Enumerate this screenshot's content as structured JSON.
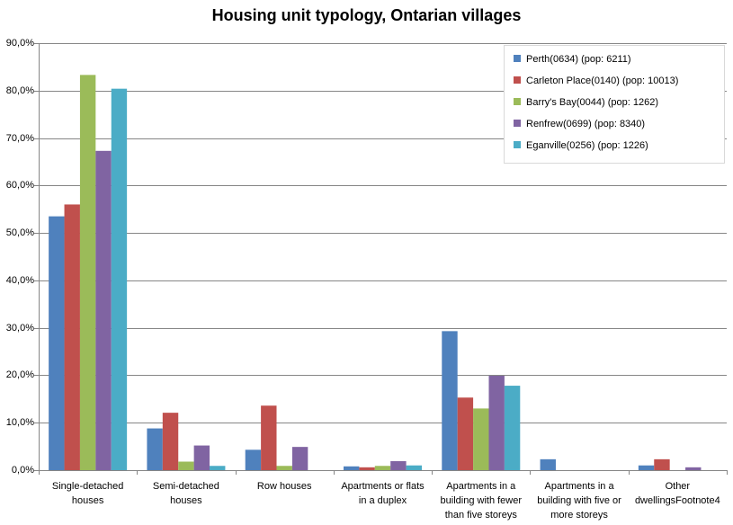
{
  "chart_data": {
    "type": "bar",
    "title": "Housing unit typology, Ontarian villages",
    "xlabel": "",
    "ylabel": "",
    "ylim": [
      0,
      90
    ],
    "yticks": [
      "0,0%",
      "10,0%",
      "20,0%",
      "30,0%",
      "40,0%",
      "50,0%",
      "60,0%",
      "70,0%",
      "80,0%",
      "90,0%"
    ],
    "categories": [
      [
        "Single-detached",
        "houses"
      ],
      [
        "Semi-detached",
        "houses"
      ],
      [
        "Row houses"
      ],
      [
        "Apartments or flats",
        "in a duplex"
      ],
      [
        "Apartments in a",
        "building with fewer",
        "than five storeys"
      ],
      [
        "Apartments in a",
        "building with five or",
        "more storeys"
      ],
      [
        "Other",
        "dwellingsFootnote4"
      ]
    ],
    "series": [
      {
        "name": "Perth(0634)  (pop: 6211)",
        "color": "#4f81bd",
        "values": [
          53.5,
          8.8,
          4.3,
          0.8,
          29.3,
          2.3,
          1.0
        ]
      },
      {
        "name": "Carleton Place(0140)  (pop: 10013)",
        "color": "#c0504d",
        "values": [
          56.0,
          12.1,
          13.6,
          0.6,
          15.3,
          0,
          2.3
        ]
      },
      {
        "name": "Barry's Bay(0044)  (pop: 1262)",
        "color": "#9bbb59",
        "values": [
          83.3,
          1.8,
          0.9,
          0.9,
          13.0,
          0,
          0
        ]
      },
      {
        "name": "Renfrew(0699)  (pop: 8340)",
        "color": "#8064a2",
        "values": [
          67.3,
          5.2,
          4.9,
          1.9,
          19.9,
          0,
          0.6
        ]
      },
      {
        "name": "Eganville(0256)  (pop: 1226)",
        "color": "#4bacc6",
        "values": [
          80.4,
          0.9,
          0,
          1.0,
          17.8,
          0,
          0
        ]
      }
    ],
    "legend_position": "top-right",
    "grid": true
  }
}
